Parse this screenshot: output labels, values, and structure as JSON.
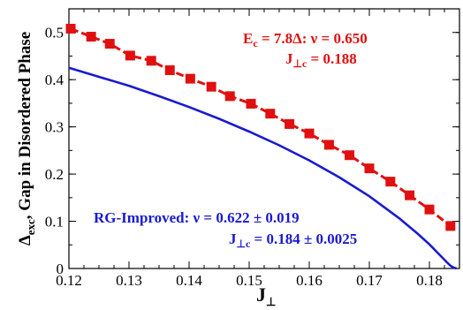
{
  "chart_data": {
    "type": "line",
    "xlabel": "J",
    "xlabel_sub": "⊥",
    "ylabel": "Δ",
    "ylabel_sub": "exc",
    "ylabel_rest": ", Gap in Disordered Phase",
    "xlim": [
      0.12,
      0.185
    ],
    "ylim": [
      0,
      0.55
    ],
    "x_ticks": [
      "0.12",
      "0.13",
      "0.14",
      "0.15",
      "0.16",
      "0.17",
      "0.18"
    ],
    "x_tick_values": [
      0.12,
      0.13,
      0.14,
      0.15,
      0.16,
      0.17,
      0.18
    ],
    "y_ticks": [
      "0",
      "0.1",
      "0.2",
      "0.3",
      "0.4",
      "0.5"
    ],
    "y_tick_values": [
      0,
      0.1,
      0.2,
      0.3,
      0.4,
      0.5
    ],
    "series": [
      {
        "style": "markers-dashed",
        "color": "#e01010",
        "x": [
          0.1203,
          0.1237,
          0.1268,
          0.1302,
          0.1337,
          0.1368,
          0.1402,
          0.1437,
          0.1468,
          0.1503,
          0.1535,
          0.1567,
          0.16,
          0.1633,
          0.1667,
          0.17,
          0.1735,
          0.1767,
          0.18,
          0.1835
        ],
        "y": [
          0.508,
          0.491,
          0.476,
          0.451,
          0.44,
          0.42,
          0.402,
          0.385,
          0.365,
          0.349,
          0.328,
          0.306,
          0.286,
          0.262,
          0.24,
          0.212,
          0.184,
          0.155,
          0.125,
          0.09
        ]
      },
      {
        "style": "line",
        "color": "#1a1ad0",
        "x": [
          0.12,
          0.125,
          0.13,
          0.135,
          0.14,
          0.145,
          0.15,
          0.155,
          0.16,
          0.165,
          0.17,
          0.175,
          0.178,
          0.18,
          0.182,
          0.183,
          0.1835,
          0.184,
          0.1845
        ],
        "y": [
          0.425,
          0.406,
          0.387,
          0.365,
          0.342,
          0.317,
          0.29,
          0.261,
          0.229,
          0.193,
          0.153,
          0.106,
          0.074,
          0.051,
          0.025,
          0.012,
          0.006,
          0.002,
          0.0
        ]
      }
    ],
    "annotations": {
      "red_line1_a": "E",
      "red_line1_sub": "c",
      "red_line1_b": " = 7.8Δ: ν = 0.650",
      "red_line2_a": "J",
      "red_line2_sub": "⊥c",
      "red_line2_b": " = 0.188",
      "blue_line1": "RG-Improved: ν = 0.622 ± 0.019",
      "blue_line2_a": "J",
      "blue_line2_sub": "⊥c",
      "blue_line2_b": " = 0.184 ± 0.0025"
    }
  }
}
